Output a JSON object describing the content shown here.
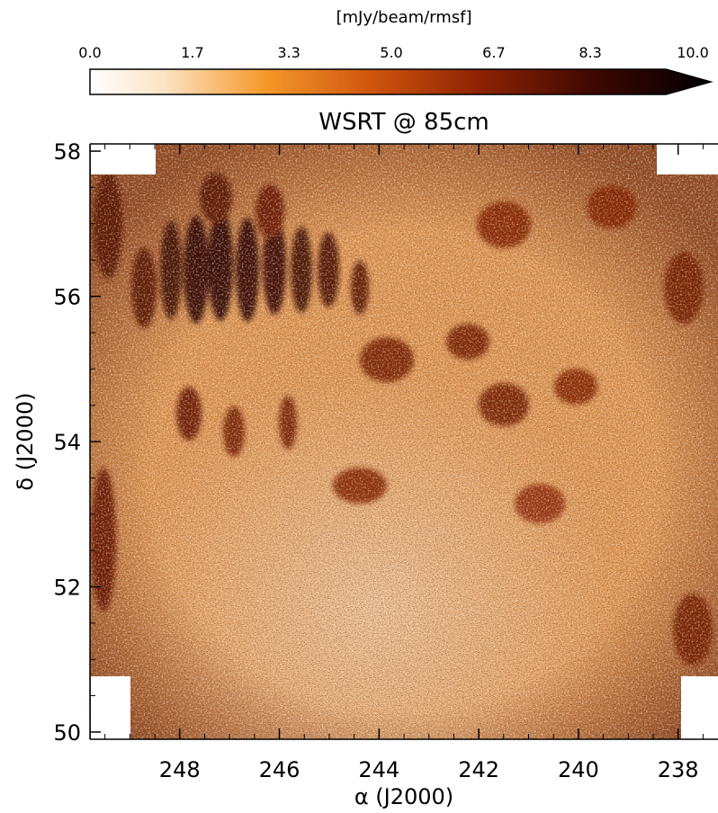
{
  "chart_data": {
    "type": "heatmap",
    "title": "WSRT @ 85cm",
    "colorbar": {
      "label": "[mJy/beam/rmsf]",
      "ticks": [
        0.0,
        1.7,
        3.3,
        5.0,
        6.7,
        8.3,
        10.0
      ],
      "tick_labels": [
        "0.0",
        "1.7",
        "3.3",
        "5.0",
        "6.7",
        "8.3",
        "10.0"
      ],
      "range": [
        0,
        10
      ],
      "extend": "max",
      "colors": [
        "#ffffff",
        "#fbe3c4",
        "#f59a2a",
        "#d0560e",
        "#8c2204",
        "#3a0701",
        "#000000"
      ]
    },
    "xlabel": "α (J2000)",
    "ylabel": "δ (J2000)",
    "xlim": [
      249.8,
      237.2
    ],
    "ylim": [
      49.9,
      58.1
    ],
    "xticks": [
      248,
      246,
      244,
      242,
      240,
      238
    ],
    "xtick_labels": [
      "248",
      "246",
      "244",
      "242",
      "240",
      "238"
    ],
    "yticks": [
      50,
      52,
      54,
      56,
      58
    ],
    "ytick_labels": [
      "50",
      "52",
      "54",
      "56",
      "58"
    ],
    "grid": false
  }
}
